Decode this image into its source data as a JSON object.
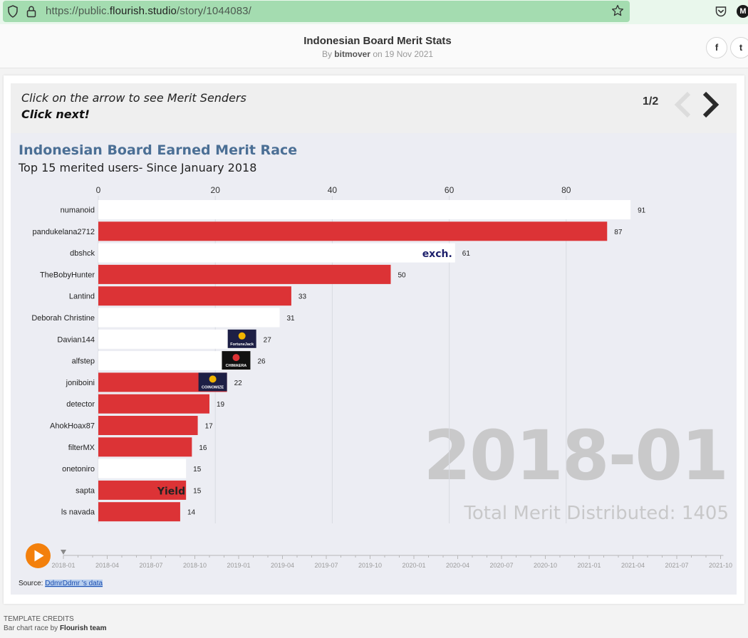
{
  "browser": {
    "url_prefix": "https://public.",
    "url_domain": "flourish.studio",
    "url_path": "/story/1044083/",
    "ext_letter": "M"
  },
  "header": {
    "title": "Indonesian Board Merit Stats",
    "by_prefix": "By",
    "author": "bitmover",
    "date_text": "on 19 Nov 2021",
    "share_facebook": "f",
    "share_twitter": "t"
  },
  "stepper": {
    "line1": "Click on the arrow to see Merit Senders",
    "line2": "Click next!",
    "counter": "1/2"
  },
  "chart_data": {
    "type": "bar",
    "title": "Indonesian Board Earned Merit Race",
    "subtitle": "Top 15 merited users- Since January 2018",
    "xlim": [
      0,
      91
    ],
    "x_ticks": [
      0,
      20,
      40,
      60,
      80
    ],
    "grid": true,
    "categories": [
      "numanoid",
      "pandukelana2712",
      "dbshck",
      "TheBobyHunter",
      "Lantind",
      "Deborah Christine",
      "Davian144",
      "alfstep",
      "joniboini",
      "detector",
      "AhokHoax87",
      "filterMX",
      "onetoniro",
      "sapta",
      "ls navada"
    ],
    "values": [
      91,
      87,
      61,
      50,
      33,
      31,
      27,
      26,
      22,
      19,
      17,
      16,
      15,
      15,
      14
    ],
    "bar_colors": [
      "#ffffff",
      "#dc3336",
      "#ffffff",
      "#dc3336",
      "#dc3336",
      "#ffffff",
      "#ffffff",
      "#ffffff",
      "#dc3336",
      "#dc3336",
      "#dc3336",
      "#dc3336",
      "#ffffff",
      "#dc3336",
      "#dc3336"
    ],
    "bar_logos": {
      "2": "exch.",
      "6": "FortuneJack",
      "7": "CHIMAERA",
      "8": "COINOMIZE",
      "13": "Yield"
    },
    "current_period": "2018-01",
    "total_text": "Total Merit Distributed: 1405",
    "timeline_labels": [
      "2018-01",
      "2018-04",
      "2018-07",
      "2018-10",
      "2019-01",
      "2019-04",
      "2019-07",
      "2019-10",
      "2020-01",
      "2020-04",
      "2020-07",
      "2020-10",
      "2021-01",
      "2021-04",
      "2021-07",
      "2021-10"
    ]
  },
  "source": {
    "prefix": "Source:",
    "link": "DdmrDdmr 's data"
  },
  "credits": {
    "heading": "TEMPLATE CREDITS",
    "line_prefix": "Bar chart race by",
    "line_team": "Flourish team"
  },
  "colors": {
    "accent_red": "#dc3336",
    "title_blue": "#4b6f95",
    "play_orange": "#f3800c"
  }
}
